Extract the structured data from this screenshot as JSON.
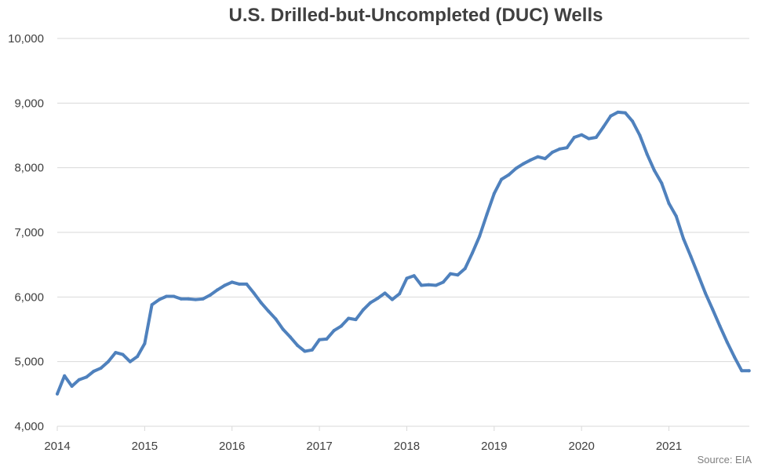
{
  "chart_data": {
    "type": "line",
    "title": "U.S. Drilled-but-Uncompleted (DUC) Wells",
    "source": "Source: EIA",
    "xlim": [
      2014,
      2021.92
    ],
    "ylim": [
      4000,
      10000
    ],
    "yticks": [
      4000,
      5000,
      6000,
      7000,
      8000,
      9000,
      10000
    ],
    "ytick_labels": [
      "4,000",
      "5,000",
      "6,000",
      "7,000",
      "8,000",
      "9,000",
      "10,000"
    ],
    "xticks": [
      2014,
      2015,
      2016,
      2017,
      2018,
      2019,
      2020,
      2021
    ],
    "xtick_labels": [
      "2014",
      "2015",
      "2016",
      "2017",
      "2018",
      "2019",
      "2020",
      "2021"
    ],
    "grid": true,
    "legend": "none",
    "line_color": "#4f81bd",
    "series": [
      {
        "x": [
          2014.0,
          2014.083,
          2014.167,
          2014.25,
          2014.333,
          2014.417,
          2014.5,
          2014.583,
          2014.667,
          2014.75,
          2014.833,
          2014.917,
          2015.0,
          2015.083,
          2015.167,
          2015.25,
          2015.333,
          2015.417,
          2015.5,
          2015.583,
          2015.667,
          2015.75,
          2015.833,
          2015.917,
          2016.0,
          2016.083,
          2016.167,
          2016.25,
          2016.333,
          2016.417,
          2016.5,
          2016.583,
          2016.667,
          2016.75,
          2016.833,
          2016.917,
          2017.0,
          2017.083,
          2017.167,
          2017.25,
          2017.333,
          2017.417,
          2017.5,
          2017.583,
          2017.667,
          2017.75,
          2017.833,
          2017.917,
          2018.0,
          2018.083,
          2018.167,
          2018.25,
          2018.333,
          2018.417,
          2018.5,
          2018.583,
          2018.667,
          2018.75,
          2018.833,
          2018.917,
          2019.0,
          2019.083,
          2019.167,
          2019.25,
          2019.333,
          2019.417,
          2019.5,
          2019.583,
          2019.667,
          2019.75,
          2019.833,
          2019.917,
          2020.0,
          2020.083,
          2020.167,
          2020.25,
          2020.333,
          2020.417,
          2020.5,
          2020.583,
          2020.667,
          2020.75,
          2020.833,
          2020.917,
          2021.0,
          2021.083,
          2021.167,
          2021.25,
          2021.333,
          2021.417,
          2021.5,
          2021.583,
          2021.667,
          2021.75,
          2021.833,
          2021.917
        ],
        "values": [
          4500,
          4780,
          4620,
          4720,
          4760,
          4850,
          4900,
          5000,
          5140,
          5110,
          5000,
          5080,
          5280,
          5880,
          5960,
          6010,
          6010,
          5970,
          5970,
          5960,
          5970,
          6030,
          6110,
          6180,
          6230,
          6200,
          6200,
          6060,
          5910,
          5780,
          5660,
          5500,
          5380,
          5250,
          5160,
          5180,
          5340,
          5350,
          5480,
          5550,
          5670,
          5650,
          5800,
          5910,
          5980,
          6060,
          5960,
          6050,
          6290,
          6330,
          6180,
          6190,
          6180,
          6230,
          6360,
          6340,
          6440,
          6680,
          6940,
          7280,
          7600,
          7820,
          7890,
          7990,
          8060,
          8120,
          8170,
          8140,
          8240,
          8290,
          8310,
          8470,
          8510,
          8450,
          8470,
          8630,
          8800,
          8860,
          8850,
          8720,
          8500,
          8210,
          7960,
          7760,
          7450,
          7250,
          6900,
          6630,
          6350,
          6060,
          5810,
          5550,
          5300,
          5070,
          4860,
          4860
        ]
      }
    ]
  }
}
